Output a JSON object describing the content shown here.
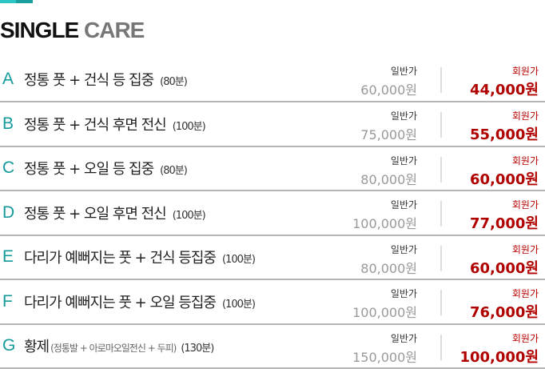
{
  "title": {
    "bold": "SINGLE",
    "light": "CARE"
  },
  "regular_label": "일반가",
  "member_label": "회원가",
  "items": [
    {
      "letter": "A",
      "name": "정통 풋 + 건식 등 집중",
      "sub": "",
      "duration": "(80분)",
      "regular": "60,000원",
      "member": "44,000원"
    },
    {
      "letter": "B",
      "name": "정통 풋 + 건식 후면 전신",
      "sub": "",
      "duration": "(100분)",
      "regular": "75,000원",
      "member": "55,000원"
    },
    {
      "letter": "C",
      "name": "정통 풋 + 오일 등 집중",
      "sub": "",
      "duration": "(80분)",
      "regular": "80,000원",
      "member": "60,000원"
    },
    {
      "letter": "D",
      "name": "정통 풋 + 오일 후면 전신",
      "sub": "",
      "duration": "(100분)",
      "regular": "100,000원",
      "member": "77,000원"
    },
    {
      "letter": "E",
      "name": "다리가 예뻐지는 풋 + 건식 등집중",
      "sub": "",
      "duration": "(100분)",
      "regular": "80,000원",
      "member": "60,000원"
    },
    {
      "letter": "F",
      "name": "다리가 예뻐지는 풋 + 오일 등집중",
      "sub": "",
      "duration": "(100분)",
      "regular": "100,000원",
      "member": "76,000원"
    },
    {
      "letter": "G",
      "name": "황제",
      "sub": "(정통발 + 아로마오일전신 + 두피)",
      "duration": "(130분)",
      "regular": "150,000원",
      "member": "100,000원"
    }
  ]
}
